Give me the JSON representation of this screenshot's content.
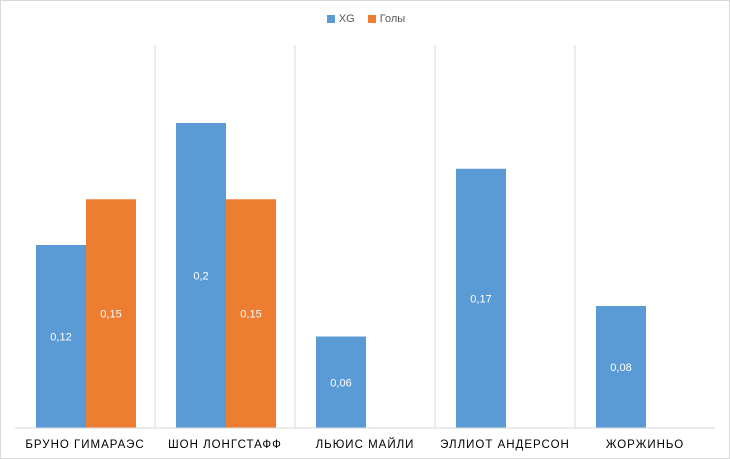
{
  "chart_data": {
    "type": "bar",
    "title": "",
    "xlabel": "",
    "ylabel": "",
    "categories": [
      "БРУНО ГИМАРАЭС",
      "ШОН ЛОНГСТАФФ",
      "ЛЬЮИС МАЙЛИ",
      "ЭЛЛИОТ АНДЕРСОН",
      "ЖОРЖИНЬО"
    ],
    "series": [
      {
        "name": "XG",
        "color": "#5b9bd5",
        "values": [
          0.12,
          0.2,
          0.06,
          0.17,
          0.08
        ],
        "labels": [
          "0,12",
          "0,2",
          "0,06",
          "0,17",
          "0,08"
        ]
      },
      {
        "name": "Голы",
        "color": "#ed7d31",
        "values": [
          0.15,
          0.15,
          null,
          null,
          null
        ],
        "labels": [
          "0,15",
          "0,15",
          "",
          "",
          ""
        ]
      }
    ],
    "ylim": [
      0,
      0.25
    ],
    "grid": "vertical category separators",
    "legend_position": "top"
  }
}
